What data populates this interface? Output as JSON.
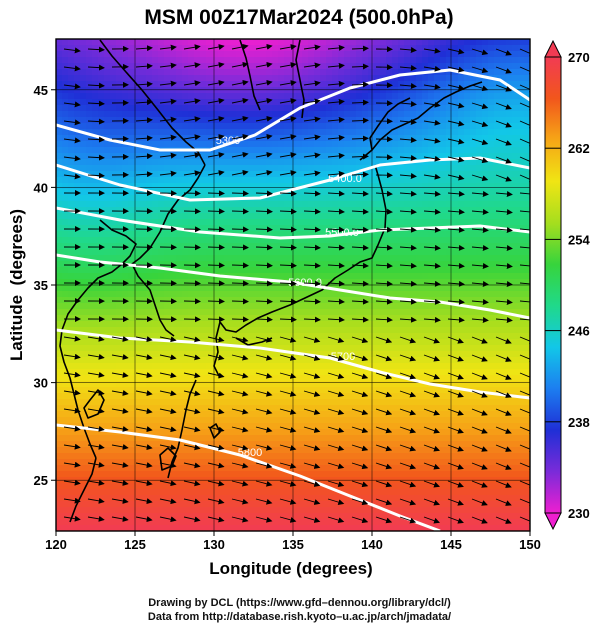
{
  "title": "MSM 00Z17Mar2024 (500.0hPa)",
  "axes": {
    "xlabel": "Longitude (degrees)",
    "ylabel": "Latitude  (degrees)",
    "xticks": [
      120,
      125,
      130,
      135,
      140,
      145,
      150
    ],
    "yticks": [
      25,
      30,
      35,
      40,
      45
    ],
    "xlim": [
      120,
      150
    ],
    "ylim": [
      22.4,
      47.6
    ]
  },
  "colorbar": {
    "ticks": [
      230,
      238,
      246,
      254,
      262,
      270
    ],
    "min": 230,
    "max": 270,
    "colors": [
      "#ee1fd0",
      "#7a2bd9",
      "#1f2fd6",
      "#1c7ef0",
      "#12c7e8",
      "#20d98a",
      "#37d43c",
      "#a6de1e",
      "#f0e514",
      "#f6a616",
      "#f2561c",
      "#f23b53"
    ]
  },
  "contours": {
    "color": "#ffffff",
    "labels": [
      "5300",
      "5400.0",
      "5500.0",
      "5600.0",
      "5700",
      "5800"
    ]
  },
  "credits": {
    "line1": "Drawing by DCL (https://www.gfd–dennou.org/library/dcl/)",
    "line2": "Data from http://database.rish.kyoto–u.ac.jp/arch/jmadata/"
  }
}
